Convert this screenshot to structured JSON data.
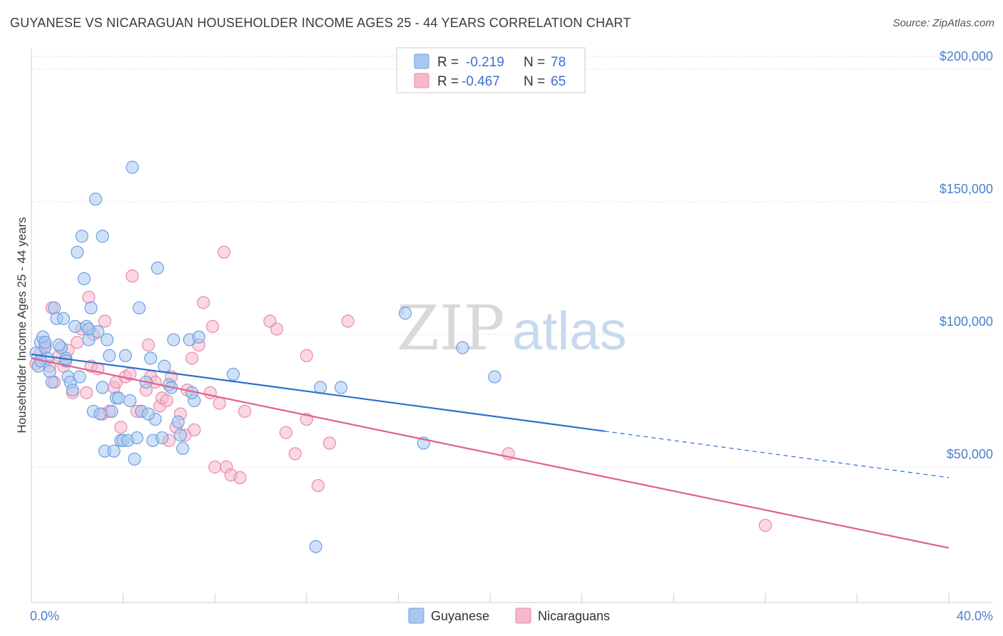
{
  "header": {
    "title": "GUYANESE VS NICARAGUAN HOUSEHOLDER INCOME AGES 25 - 44 YEARS CORRELATION CHART",
    "source": "Source: ZipAtlas.com"
  },
  "watermark": {
    "zip": "ZIP",
    "atlas": "atlas"
  },
  "legend_top": [
    {
      "r_label": "R =",
      "r_value": "-0.219",
      "n_label": "N =",
      "n_value": "78"
    },
    {
      "r_label": "R =",
      "r_value": "-0.467",
      "n_label": "N =",
      "n_value": "65"
    }
  ],
  "colors": {
    "guyanese_fill": "#a9c8f0",
    "guyanese_stroke": "#6e9fe0",
    "guyanese_line": "#2f6fd0",
    "nicaraguan_fill": "#f5b8cc",
    "nicaraguan_stroke": "#e88aa9",
    "nicaraguan_line": "#e0608c",
    "tick_label": "#4a7fd0",
    "grid": "#dddddd"
  },
  "chart_data": {
    "type": "scatter",
    "ylabel": "Householder Income Ages 25 - 44 years",
    "xlim": [
      0,
      40
    ],
    "ylim": [
      5000,
      210000
    ],
    "x_ticks": [
      {
        "value": 0,
        "label": "0.0%"
      },
      {
        "value": 40,
        "label": "40.0%"
      }
    ],
    "y_ticks": [
      {
        "value": 50000,
        "label": "$50,000"
      },
      {
        "value": 100000,
        "label": "$100,000"
      },
      {
        "value": 150000,
        "label": "$150,000"
      },
      {
        "value": 200000,
        "label": "$200,000"
      }
    ],
    "series": [
      {
        "name": "Guyanese",
        "points": [
          [
            0.2,
            93000
          ],
          [
            0.3,
            88000
          ],
          [
            0.4,
            97000
          ],
          [
            0.5,
            99000
          ],
          [
            0.6,
            95000
          ],
          [
            0.7,
            91000
          ],
          [
            0.8,
            86000
          ],
          [
            0.9,
            82000
          ],
          [
            1.0,
            110000
          ],
          [
            1.1,
            106000
          ],
          [
            1.3,
            95000
          ],
          [
            1.4,
            106000
          ],
          [
            1.5,
            91000
          ],
          [
            1.6,
            84000
          ],
          [
            1.7,
            82000
          ],
          [
            1.8,
            79000
          ],
          [
            1.9,
            103000
          ],
          [
            2.0,
            131000
          ],
          [
            2.1,
            84000
          ],
          [
            2.2,
            137000
          ],
          [
            2.3,
            121000
          ],
          [
            2.4,
            103000
          ],
          [
            2.5,
            98000
          ],
          [
            2.6,
            110000
          ],
          [
            2.7,
            71000
          ],
          [
            2.8,
            151000
          ],
          [
            2.9,
            101000
          ],
          [
            3.0,
            70000
          ],
          [
            3.1,
            137000
          ],
          [
            3.2,
            56000
          ],
          [
            3.3,
            98000
          ],
          [
            3.4,
            92000
          ],
          [
            3.5,
            71000
          ],
          [
            3.6,
            56000
          ],
          [
            3.7,
            76000
          ],
          [
            3.8,
            76000
          ],
          [
            3.9,
            60000
          ],
          [
            4.0,
            60000
          ],
          [
            4.1,
            92000
          ],
          [
            4.2,
            60000
          ],
          [
            4.3,
            75000
          ],
          [
            4.4,
            163000
          ],
          [
            4.5,
            53000
          ],
          [
            4.6,
            61000
          ],
          [
            4.7,
            110000
          ],
          [
            4.8,
            71000
          ],
          [
            5.0,
            82000
          ],
          [
            5.2,
            91000
          ],
          [
            5.3,
            60000
          ],
          [
            5.4,
            68000
          ],
          [
            5.5,
            125000
          ],
          [
            5.7,
            61000
          ],
          [
            5.8,
            88000
          ],
          [
            6.0,
            81000
          ],
          [
            6.2,
            98000
          ],
          [
            6.4,
            67000
          ],
          [
            6.5,
            62000
          ],
          [
            6.6,
            57000
          ],
          [
            6.9,
            98000
          ],
          [
            7.1,
            75000
          ],
          [
            7.3,
            99000
          ],
          [
            8.8,
            85000
          ],
          [
            12.6,
            80000
          ],
          [
            13.5,
            80000
          ],
          [
            16.3,
            108000
          ],
          [
            17.1,
            59000
          ],
          [
            18.8,
            95000
          ],
          [
            20.2,
            84000
          ],
          [
            12.4,
            20000
          ],
          [
            0.4,
            90000
          ],
          [
            0.6,
            97000
          ],
          [
            1.2,
            96000
          ],
          [
            3.1,
            80000
          ],
          [
            5.1,
            70000
          ],
          [
            6.1,
            80000
          ],
          [
            7.0,
            78000
          ],
          [
            1.5,
            90000
          ],
          [
            2.5,
            102000
          ]
        ]
      },
      {
        "name": "Nicaraguans",
        "points": [
          [
            0.2,
            89000
          ],
          [
            0.4,
            93000
          ],
          [
            0.6,
            96000
          ],
          [
            0.8,
            88000
          ],
          [
            0.9,
            110000
          ],
          [
            1.0,
            82000
          ],
          [
            1.2,
            92000
          ],
          [
            1.4,
            88000
          ],
          [
            1.6,
            94000
          ],
          [
            1.8,
            78000
          ],
          [
            2.0,
            97000
          ],
          [
            2.2,
            102000
          ],
          [
            2.4,
            78000
          ],
          [
            2.5,
            114000
          ],
          [
            2.6,
            88000
          ],
          [
            2.7,
            100000
          ],
          [
            2.9,
            87000
          ],
          [
            3.1,
            70000
          ],
          [
            3.2,
            105000
          ],
          [
            3.4,
            71000
          ],
          [
            3.6,
            80000
          ],
          [
            3.7,
            82000
          ],
          [
            3.9,
            65000
          ],
          [
            4.1,
            84000
          ],
          [
            4.3,
            85000
          ],
          [
            4.4,
            122000
          ],
          [
            4.6,
            71000
          ],
          [
            4.8,
            71000
          ],
          [
            5.0,
            79000
          ],
          [
            5.1,
            96000
          ],
          [
            5.2,
            84000
          ],
          [
            5.4,
            82000
          ],
          [
            5.6,
            73000
          ],
          [
            5.7,
            76000
          ],
          [
            5.9,
            75000
          ],
          [
            6.0,
            60000
          ],
          [
            6.1,
            84000
          ],
          [
            6.3,
            65000
          ],
          [
            6.5,
            70000
          ],
          [
            6.7,
            62000
          ],
          [
            6.8,
            79000
          ],
          [
            7.0,
            91000
          ],
          [
            7.1,
            64000
          ],
          [
            7.3,
            96000
          ],
          [
            7.5,
            112000
          ],
          [
            7.8,
            78000
          ],
          [
            7.9,
            103000
          ],
          [
            8.0,
            50000
          ],
          [
            8.2,
            74000
          ],
          [
            8.4,
            131000
          ],
          [
            8.5,
            50000
          ],
          [
            8.7,
            47000
          ],
          [
            9.1,
            46000
          ],
          [
            9.3,
            71000
          ],
          [
            10.4,
            105000
          ],
          [
            10.7,
            102000
          ],
          [
            11.1,
            63000
          ],
          [
            11.5,
            55000
          ],
          [
            12.0,
            92000
          ],
          [
            12.0,
            68000
          ],
          [
            12.5,
            43000
          ],
          [
            13.0,
            59000
          ],
          [
            13.8,
            105000
          ],
          [
            20.8,
            55000
          ],
          [
            32.0,
            28000
          ]
        ]
      }
    ],
    "trendlines": [
      {
        "series": "Guyanese",
        "x0": 0,
        "y0": 92500,
        "x1": 25,
        "y1": 63500,
        "dashed_from_x": 25,
        "dashed_to_x": 40,
        "dashed_end_y": 46000
      },
      {
        "series": "Nicaraguans",
        "x0": 0,
        "y0": 91000,
        "x1": 40,
        "y1": 19500
      }
    ]
  },
  "legend_bottom": [
    {
      "label": "Guyanese"
    },
    {
      "label": "Nicaraguans"
    }
  ]
}
